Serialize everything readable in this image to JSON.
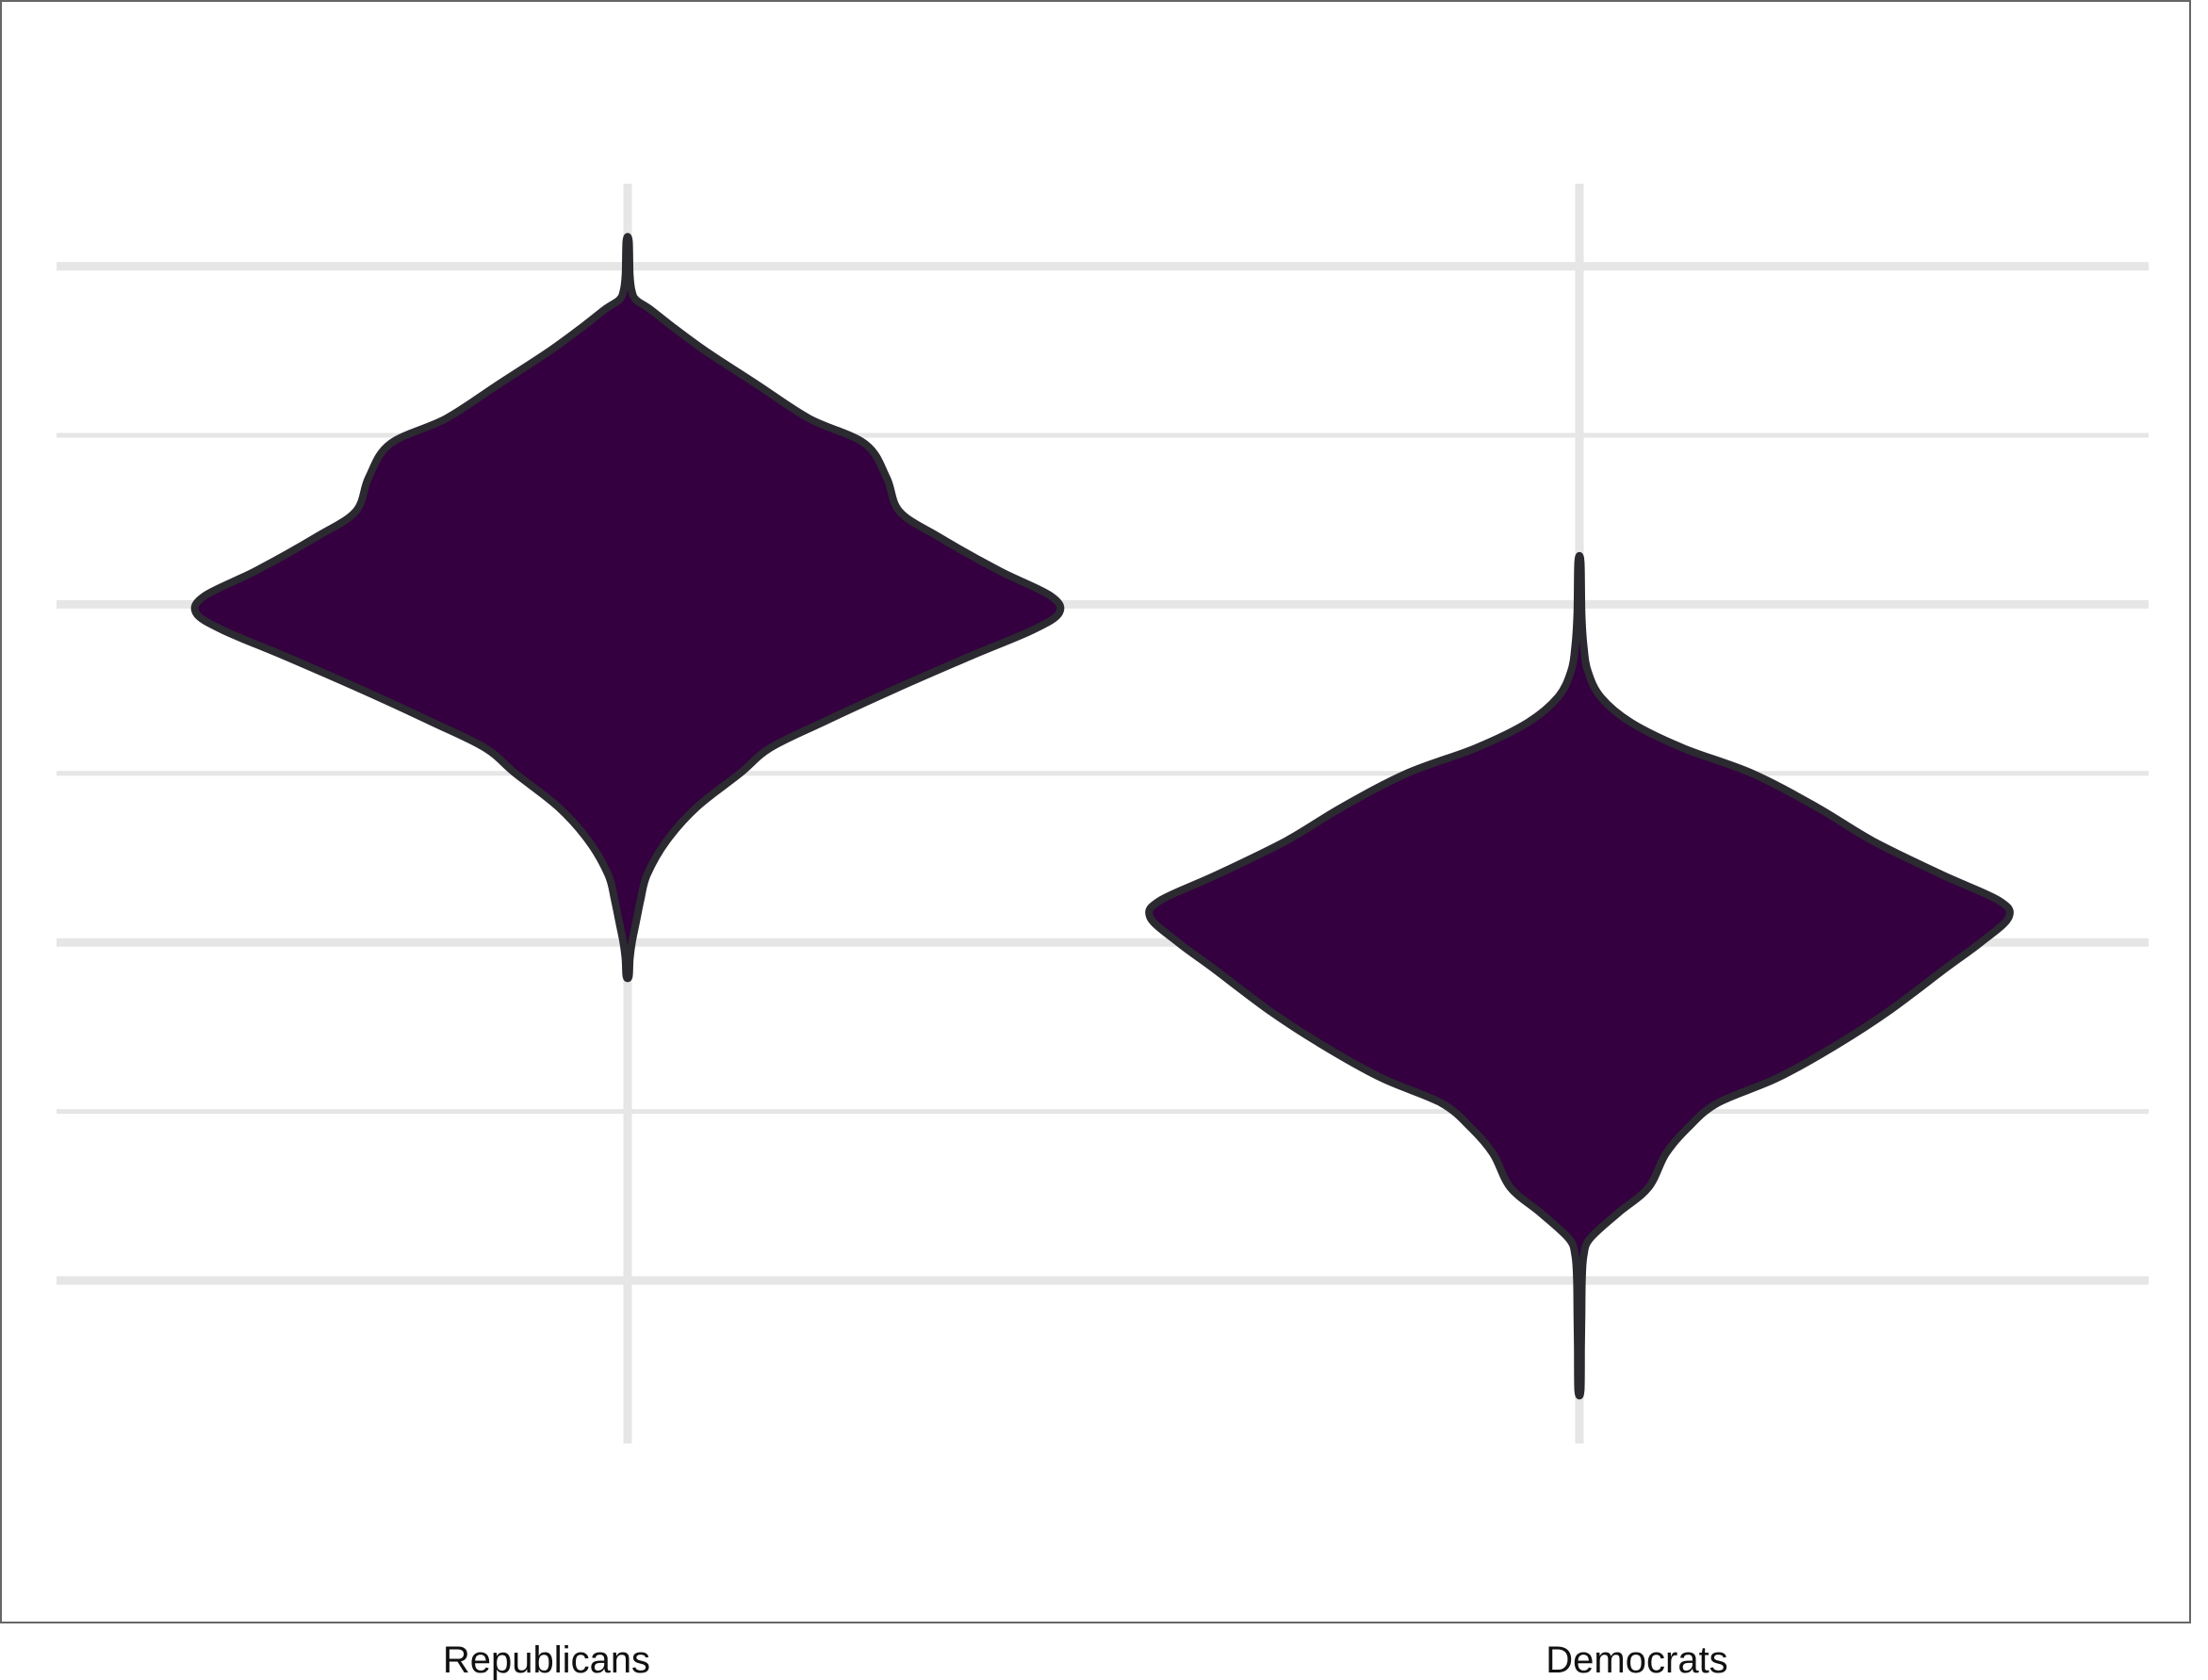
{
  "chart_data": {
    "type": "violin",
    "title": "",
    "xlabel": "",
    "ylabel": "",
    "categories": [
      "Republicans",
      "Democrats"
    ],
    "y_range": [
      -1.5,
      6.0
    ],
    "y_gridlines": [
      0,
      1,
      2,
      3,
      4,
      5,
      6
    ],
    "x_gridlines": true,
    "legend": "none",
    "fill_color": "#34003f",
    "outline_color": "#2a2a30",
    "grid_color": "#e6e6e6",
    "series": [
      {
        "category": "Republicans",
        "min": 1.8,
        "max": 6.15,
        "mode": 4.0,
        "density_profile": [
          [
            1.8,
            0.003
          ],
          [
            1.9,
            0.005
          ],
          [
            2.0,
            0.01
          ],
          [
            2.1,
            0.018
          ],
          [
            2.25,
            0.03
          ],
          [
            2.4,
            0.045
          ],
          [
            2.6,
            0.09
          ],
          [
            2.8,
            0.16
          ],
          [
            3.0,
            0.26
          ],
          [
            3.15,
            0.33
          ],
          [
            3.3,
            0.45
          ],
          [
            3.5,
            0.62
          ],
          [
            3.7,
            0.8
          ],
          [
            3.85,
            0.94
          ],
          [
            3.95,
            1.0
          ],
          [
            4.05,
            0.98
          ],
          [
            4.2,
            0.86
          ],
          [
            4.4,
            0.72
          ],
          [
            4.55,
            0.63
          ],
          [
            4.75,
            0.6
          ],
          [
            4.95,
            0.55
          ],
          [
            5.1,
            0.42
          ],
          [
            5.3,
            0.3
          ],
          [
            5.5,
            0.18
          ],
          [
            5.65,
            0.1
          ],
          [
            5.75,
            0.05
          ],
          [
            5.8,
            0.02
          ],
          [
            5.85,
            0.01
          ],
          [
            5.95,
            0.005
          ],
          [
            6.15,
            0.003
          ]
        ]
      },
      {
        "category": "Democrats",
        "min": -0.65,
        "max": 4.25,
        "mode": 2.2,
        "density_profile": [
          [
            -0.65,
            0.003
          ],
          [
            -0.4,
            0.004
          ],
          [
            -0.2,
            0.005
          ],
          [
            0.0,
            0.006
          ],
          [
            0.15,
            0.01
          ],
          [
            0.25,
            0.025
          ],
          [
            0.4,
            0.09
          ],
          [
            0.55,
            0.16
          ],
          [
            0.75,
            0.2
          ],
          [
            0.9,
            0.25
          ],
          [
            1.05,
            0.32
          ],
          [
            1.2,
            0.46
          ],
          [
            1.4,
            0.6
          ],
          [
            1.6,
            0.72
          ],
          [
            1.85,
            0.85
          ],
          [
            2.0,
            0.93
          ],
          [
            2.15,
            0.995
          ],
          [
            2.25,
            0.97
          ],
          [
            2.4,
            0.84
          ],
          [
            2.6,
            0.68
          ],
          [
            2.8,
            0.55
          ],
          [
            3.0,
            0.4
          ],
          [
            3.15,
            0.24
          ],
          [
            3.3,
            0.12
          ],
          [
            3.45,
            0.05
          ],
          [
            3.6,
            0.02
          ],
          [
            3.75,
            0.01
          ],
          [
            3.95,
            0.005
          ],
          [
            4.25,
            0.003
          ]
        ]
      }
    ]
  }
}
